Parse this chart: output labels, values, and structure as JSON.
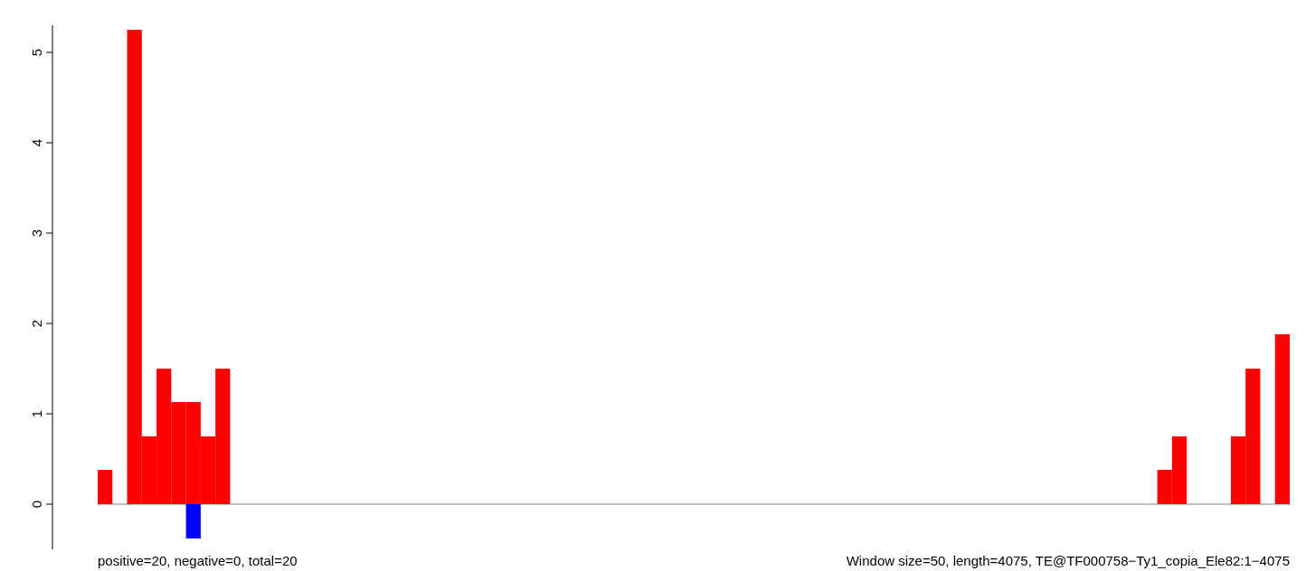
{
  "chart_data": {
    "type": "bar",
    "categories": [
      null,
      null,
      null,
      null,
      null,
      null,
      null,
      null,
      null,
      null,
      null,
      null,
      null,
      null,
      null,
      null,
      null,
      null,
      null,
      null,
      null,
      null,
      null,
      null,
      null,
      null,
      null,
      null,
      null,
      null,
      null,
      null,
      null,
      null,
      null,
      null,
      null,
      null,
      null,
      null,
      null,
      null,
      null,
      null,
      null,
      null,
      null,
      null,
      null,
      null,
      null,
      null,
      null,
      null,
      null,
      null,
      null,
      null,
      null,
      null,
      null,
      null,
      null,
      null,
      null,
      null,
      null,
      null,
      null,
      null,
      null,
      null,
      null,
      null,
      null,
      null,
      null,
      null,
      null,
      null,
      null
    ],
    "series": [
      {
        "color": "#ff0000",
        "values": [
          0.38,
          0,
          5.25,
          0.75,
          1.5,
          1.13,
          1.13,
          0.75,
          1.5,
          0,
          0,
          0,
          0,
          0,
          0,
          0,
          0,
          0,
          0,
          0,
          0,
          0,
          0,
          0,
          0,
          0,
          0,
          0,
          0,
          0,
          0,
          0,
          0,
          0,
          0,
          0,
          0,
          0,
          0,
          0,
          0,
          0,
          0,
          0,
          0,
          0,
          0,
          0,
          0,
          0,
          0,
          0,
          0,
          0,
          0,
          0,
          0,
          0,
          0,
          0,
          0,
          0,
          0,
          0,
          0,
          0,
          0,
          0,
          0,
          0,
          0,
          0,
          0.38,
          0.75,
          0,
          0,
          0,
          0.75,
          1.5,
          0,
          1.88
        ]
      },
      {
        "color": "#0000ff",
        "values": [
          0,
          0,
          0,
          0,
          0,
          0,
          -0.38,
          0,
          0,
          0,
          0,
          0,
          0,
          0,
          0,
          0,
          0,
          0,
          0,
          0,
          0,
          0,
          0,
          0,
          0,
          0,
          0,
          0,
          0,
          0,
          0,
          0,
          0,
          0,
          0,
          0,
          0,
          0,
          0,
          0,
          0,
          0,
          0,
          0,
          0,
          0,
          0,
          0,
          0,
          0,
          0,
          0,
          0,
          0,
          0,
          0,
          0,
          0,
          0,
          0,
          0,
          0,
          0,
          0,
          0,
          0,
          0,
          0,
          0,
          0,
          0,
          0,
          0,
          0,
          0,
          0,
          0,
          0,
          0,
          0,
          0
        ]
      }
    ],
    "ylim": [
      -0.5,
      5.3
    ],
    "yticks": [
      0,
      1,
      2,
      3,
      4,
      5
    ],
    "ref_lines": [
      {
        "axis": "y",
        "value": 0,
        "color": "#808080"
      }
    ],
    "annotations": [
      "positive=20, negative=0, total=20",
      "Window size=50, length=4075, TE@TF000758−Ty1_copia_Ele82:1−4075"
    ]
  }
}
